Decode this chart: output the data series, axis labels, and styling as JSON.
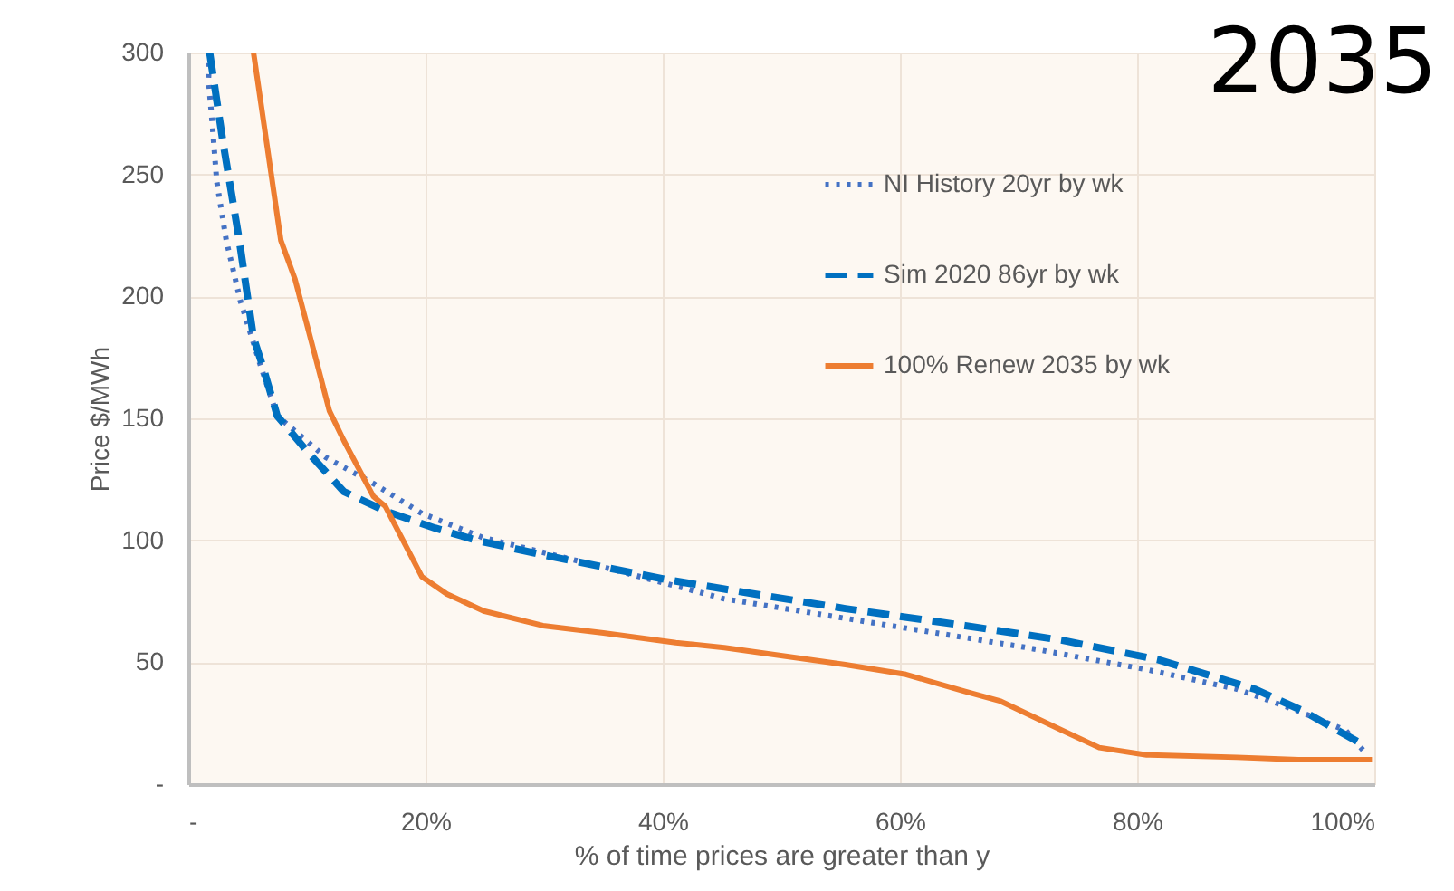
{
  "chart_data": {
    "type": "line",
    "xlabel": "% of time prices are greater than y",
    "ylabel": "Price $/MWh",
    "annotations": [
      "2035"
    ],
    "xlim": [
      0,
      100
    ],
    "ylim": [
      0,
      300
    ],
    "xticks": [
      {
        "value": 0,
        "label": "-"
      },
      {
        "value": 20,
        "label": "20%"
      },
      {
        "value": 40,
        "label": "40%"
      },
      {
        "value": 60,
        "label": "60%"
      },
      {
        "value": 80,
        "label": "80%"
      },
      {
        "value": 100,
        "label": "100%"
      }
    ],
    "yticks": [
      {
        "value": 0,
        "label": "-"
      },
      50,
      100,
      150,
      200,
      250,
      300
    ],
    "grid": true,
    "legend": "top right",
    "series": [
      {
        "name": "NI History 20yr by wk",
        "color": "#4472c4",
        "line_style": "dotted",
        "x": [
          1.8,
          1.7,
          2,
          2.4,
          3.2,
          4.4,
          6,
          7.5,
          11.6,
          15.7,
          19.7,
          24.9,
          35,
          45.2,
          60.5,
          70.7,
          80.8,
          88.4,
          93.6,
          97.6,
          99.4
        ],
        "values": [
          300,
          289,
          272,
          247,
          223,
          198,
          173,
          151,
          134,
          123,
          111,
          101,
          89,
          76,
          64,
          56,
          47,
          39,
          30,
          22,
          12
        ]
      },
      {
        "name": "Sim 2020 86yr by wk",
        "color": "#0070c0",
        "line_style": "dashed",
        "x": [
          1.8,
          2.9,
          4.3,
          5.5,
          6.3,
          7.5,
          10.1,
          13.1,
          16.6,
          20.8,
          24.3,
          29.9,
          40.2,
          45.2,
          55.4,
          65.5,
          73.7,
          81.8,
          89.9,
          94,
          99.1
        ],
        "values": [
          300,
          264,
          223,
          183,
          171,
          151,
          136,
          120,
          112,
          105,
          100,
          94,
          84,
          80,
          72,
          65,
          59,
          51,
          39,
          30,
          16
        ]
      },
      {
        "name": "100% Renew 2035 by wk",
        "color": "#ed7d31",
        "line_style": "solid",
        "x": [
          5.5,
          7.8,
          9,
          10.4,
          11.9,
          13.1,
          15.6,
          16.6,
          19.7,
          21.8,
          24.9,
          29.9,
          35,
          41.1,
          45.2,
          55.4,
          60.5,
          65.5,
          68.5,
          73.7,
          76.8,
          80.8,
          88.4,
          93.6,
          99.8
        ],
        "values": [
          300,
          223,
          207,
          181,
          153,
          141,
          118,
          114,
          85,
          78,
          71,
          65,
          62,
          58,
          56,
          49,
          45,
          38,
          34,
          22,
          15,
          12,
          11,
          10,
          10
        ]
      }
    ]
  }
}
